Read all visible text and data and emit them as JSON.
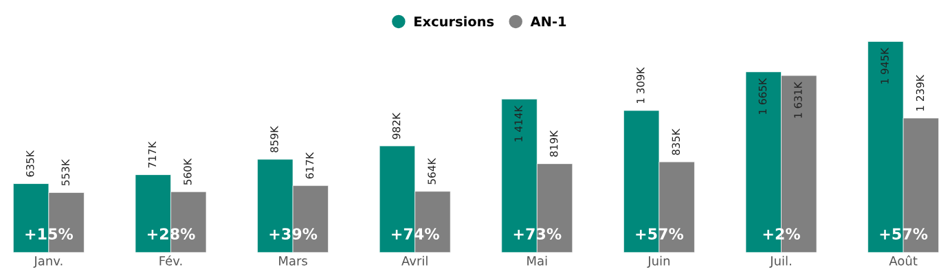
{
  "chart_data": {
    "type": "bar",
    "categories": [
      "Janv.",
      "Fév.",
      "Mars",
      "Avril",
      "Mai",
      "Juin",
      "Juil.",
      "Août"
    ],
    "series": [
      {
        "name": "Excursions",
        "color": "#00897b",
        "values": [
          635,
          717,
          859,
          982,
          1414,
          1309,
          1665,
          1945
        ],
        "value_labels": [
          "635K",
          "717K",
          "859K",
          "982K",
          "1 414K",
          "1 309K",
          "1 665K",
          "1 945K"
        ]
      },
      {
        "name": "AN-1",
        "color": "#808080",
        "values": [
          553,
          560,
          617,
          564,
          819,
          835,
          1631,
          1239
        ],
        "value_labels": [
          "553K",
          "560K",
          "617K",
          "564K",
          "819K",
          "835K",
          "1 631K",
          "1 239K"
        ]
      }
    ],
    "annotations": [
      {
        "text": "+15%",
        "x": "Janv.",
        "y": 160
      },
      {
        "text": "+28%",
        "x": "Fév.",
        "y": 160
      },
      {
        "text": "+39%",
        "x": "Mars",
        "y": 160
      },
      {
        "text": "+74%",
        "x": "Avril",
        "y": 160
      },
      {
        "text": "+73%",
        "x": "Mai",
        "y": 160
      },
      {
        "text": "+57%",
        "x": "Juin",
        "y": 160
      },
      {
        "text": "+2%",
        "x": "Juil.",
        "y": 160
      },
      {
        "text": "+57%",
        "x": "Août",
        "y": 160
      }
    ],
    "legend": "top",
    "marker": "circle",
    "grid": false,
    "tick_labels": "x"
  }
}
